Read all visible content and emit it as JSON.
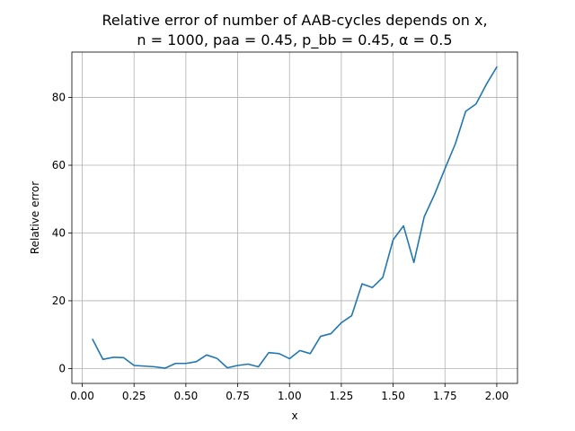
{
  "chart_data": {
    "type": "line",
    "title_line1": "Relative error of number of AAB-cycles depends on x,",
    "title_line2": "n = 1000, paa = 0.45, p_bb = 0.45, α = 0.5",
    "xlabel": "x",
    "ylabel": "Relative error",
    "xlim": [
      -0.05,
      2.1
    ],
    "ylim": [
      -4.4,
      93.4
    ],
    "xticks": [
      0.0,
      0.25,
      0.5,
      0.75,
      1.0,
      1.25,
      1.5,
      1.75,
      2.0
    ],
    "xtick_labels": [
      "0.00",
      "0.25",
      "0.50",
      "0.75",
      "1.00",
      "1.25",
      "1.50",
      "1.75",
      "2.00"
    ],
    "yticks": [
      0,
      20,
      40,
      60,
      80
    ],
    "ytick_labels": [
      "0",
      "20",
      "40",
      "60",
      "80"
    ],
    "grid": true,
    "line_color": "#1f77b4",
    "series": [
      {
        "x": [
          0.05,
          0.1,
          0.15,
          0.2,
          0.25,
          0.3,
          0.35,
          0.4,
          0.45,
          0.5,
          0.55,
          0.6,
          0.65,
          0.7,
          0.75,
          0.8,
          0.85,
          0.9,
          0.95,
          1.0,
          1.05,
          1.1,
          1.15,
          1.2,
          1.25,
          1.3,
          1.35,
          1.4,
          1.45,
          1.5,
          1.55,
          1.6,
          1.65,
          1.7,
          1.75,
          1.8,
          1.85,
          1.9,
          1.95,
          2.0
        ],
        "y": [
          8.6,
          2.7,
          3.3,
          3.2,
          0.9,
          0.7,
          0.5,
          0.1,
          1.5,
          1.5,
          2.0,
          4.0,
          3.0,
          0.2,
          0.9,
          1.3,
          0.5,
          4.7,
          4.4,
          2.9,
          5.3,
          4.4,
          9.5,
          10.3,
          13.5,
          15.6,
          25.0,
          23.9,
          26.9,
          38.0,
          42.1,
          31.3,
          44.8,
          51.4,
          59.0,
          66.3,
          75.9,
          78.1,
          83.9,
          89.0
        ]
      }
    ]
  }
}
